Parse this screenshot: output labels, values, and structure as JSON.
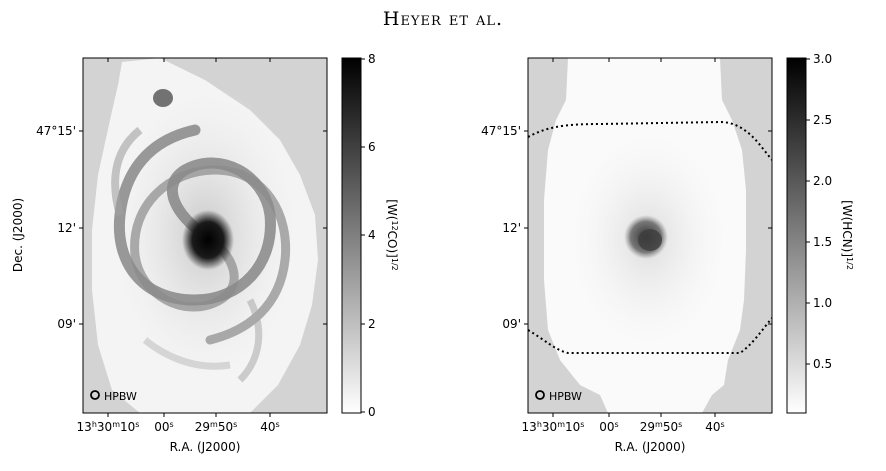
{
  "header": {
    "running_head": "Heyer et al."
  },
  "panels": [
    {
      "id": "left",
      "ylabel": "Dec. (J2000)",
      "xlabel": "R.A. (J2000)",
      "ytick_labels": [
        "47°15'",
        "12'",
        "09'"
      ],
      "xtick_labels": [
        "13h30m10s",
        "00s",
        "29m50s",
        "40s"
      ],
      "beam_label": "HPBW",
      "colorbar": {
        "label": "[W(12CO)]1/2",
        "ticks": [
          "0",
          "2",
          "4",
          "6",
          "8"
        ],
        "range": [
          0,
          8
        ]
      }
    },
    {
      "id": "right",
      "ylabel": "",
      "xlabel": "R.A. (J2000)",
      "ytick_labels": [
        "47°15'",
        "12'",
        "09'"
      ],
      "xtick_labels": [
        "13h30m10s",
        "00s",
        "29m50s",
        "40s"
      ],
      "beam_label": "HPBW",
      "colorbar": {
        "label": "[W(HCN)]1/2",
        "ticks": [
          "0.5",
          "1.0",
          "1.5",
          "2.0",
          "2.5",
          "3.0"
        ],
        "range": [
          0.1,
          3.0
        ]
      }
    }
  ],
  "colors": {
    "background_mask": "#d3d3d3",
    "contour": "#000000"
  }
}
